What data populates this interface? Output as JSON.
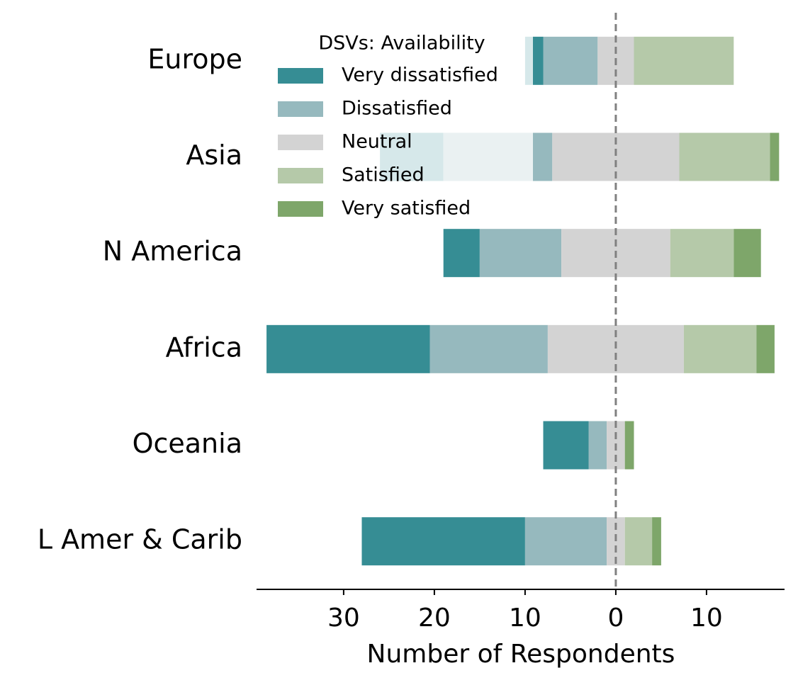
{
  "chart_data": {
    "type": "diverging-bar",
    "xlabel": "Number of Respondents",
    "legend_title": "DSVs: Availability",
    "legend": "upper left",
    "categories": [
      "Europe",
      "Asia",
      "N America",
      "Africa",
      "Oceania",
      "L Amer & Carib"
    ],
    "series": [
      {
        "name": "Very dissatisfied",
        "color": "#368d94",
        "values": [
          2,
          7,
          4,
          18,
          5,
          18
        ]
      },
      {
        "name": "Dissatisfied",
        "color": "#96b9be",
        "values": [
          6,
          12,
          9,
          13,
          2,
          9
        ]
      },
      {
        "name": "Neutral",
        "color": "#d3d3d3",
        "values": [
          4,
          14,
          12,
          15,
          2,
          2
        ]
      },
      {
        "name": "Satisfied",
        "color": "#b5c9a9",
        "values": [
          11,
          10,
          7,
          8,
          0,
          3
        ]
      },
      {
        "name": "Very satisfied",
        "color": "#7ea66a",
        "values": [
          0,
          1,
          3,
          2,
          1,
          1
        ]
      }
    ],
    "xlim": [
      -39.6,
      18.6
    ],
    "xticks": [
      {
        "value": -30,
        "label": "30"
      },
      {
        "value": -20,
        "label": "20"
      },
      {
        "value": -10,
        "label": "10"
      },
      0,
      10
    ]
  }
}
